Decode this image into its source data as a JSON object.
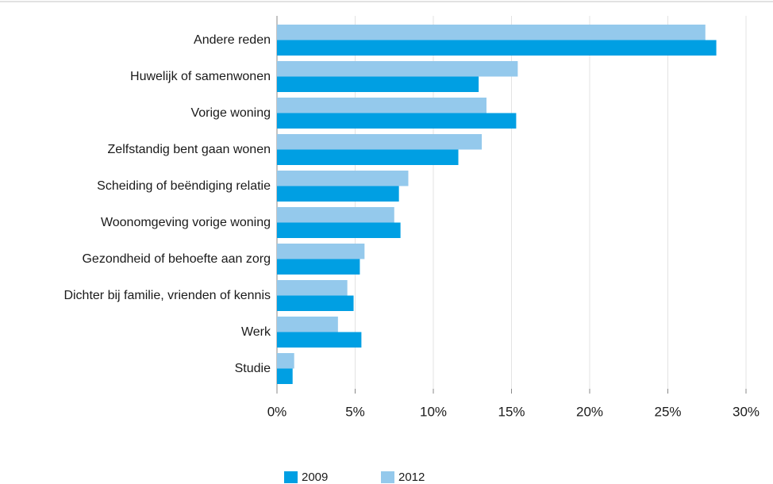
{
  "chart_data": {
    "type": "barh",
    "categories": [
      "Andere reden",
      "Huwelijk of samenwonen",
      "Vorige woning",
      "Zelfstandig bent gaan wonen",
      "Scheiding of beëndiging relatie",
      "Woonomgeving vorige woning",
      "Gezondheid of behoefte aan zorg",
      "Dichter bij familie, vrienden of kennis",
      "Werk",
      "Studie"
    ],
    "series": [
      {
        "name": "2009",
        "color": "#009fe3",
        "values": [
          28.1,
          12.9,
          15.3,
          11.6,
          7.8,
          7.9,
          5.3,
          4.9,
          5.4,
          1.0
        ]
      },
      {
        "name": "2012",
        "color": "#94c9ec",
        "values": [
          27.4,
          15.4,
          13.4,
          13.1,
          8.4,
          7.5,
          5.6,
          4.5,
          3.9,
          1.1
        ]
      }
    ],
    "xlim": [
      0,
      30
    ],
    "xticks": [
      {
        "value": 0,
        "label": "0%"
      },
      {
        "value": 5,
        "label": "5%"
      },
      {
        "value": 10,
        "label": "10%"
      },
      {
        "value": 15,
        "label": "15%"
      },
      {
        "value": 20,
        "label": "20%"
      },
      {
        "value": 25,
        "label": "25%"
      },
      {
        "value": 30,
        "label": "30%"
      }
    ],
    "grid": true
  }
}
